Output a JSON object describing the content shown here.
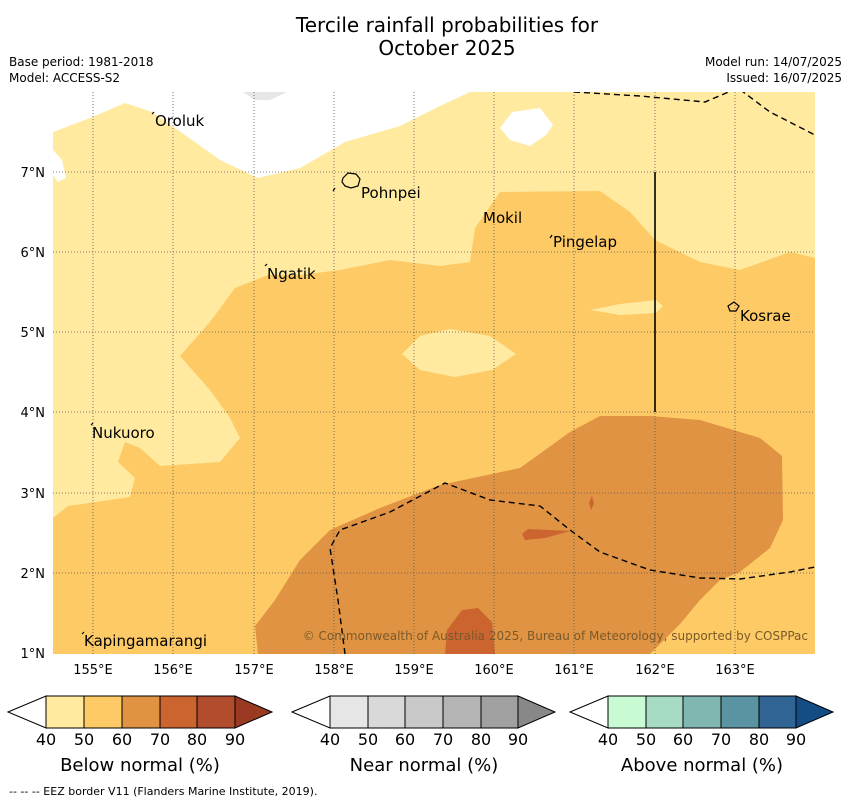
{
  "title": {
    "line1": "Tercile rainfall probabilities for",
    "line2": "October 2025"
  },
  "meta": {
    "base_period": "Base period: 1981-2018",
    "model": "Model: ACCESS-S2",
    "model_run": "Model run: 14/07/2025",
    "issued": "Issued: 16/07/2025"
  },
  "map": {
    "lon_ticks": [
      "155°E",
      "156°E",
      "157°E",
      "158°E",
      "159°E",
      "160°E",
      "161°E",
      "162°E",
      "163°E"
    ],
    "lat_ticks": [
      "1°N",
      "2°N",
      "3°N",
      "4°N",
      "5°N",
      "6°N",
      "7°N"
    ],
    "places": [
      "Oroluk",
      "Pohnpei",
      "Mokil",
      "Pingelap",
      "Ngatik",
      "Kosrae",
      "Nukuoro",
      "Kapingamarangi"
    ],
    "copyright": "© Commonwealth of Australia 2025, Bureau of Meteorology, supported by COSPPac"
  },
  "legend": {
    "ticks": [
      "40",
      "50",
      "60",
      "70",
      "80",
      "90"
    ],
    "below": {
      "label": "Below normal (%)",
      "colors": [
        "#ffffff",
        "#ffeaa0",
        "#fdca65",
        "#e09342",
        "#cc6430",
        "#b14d2c",
        "#9a3a22"
      ]
    },
    "near": {
      "label": "Near normal (%)",
      "colors": [
        "#ffffff",
        "#e6e6e6",
        "#d9d9d9",
        "#c8c8c8",
        "#b4b4b4",
        "#a0a0a0",
        "#888888"
      ]
    },
    "above": {
      "label": "Above normal (%)",
      "colors": [
        "#ffffff",
        "#c8fbd3",
        "#a4dbc2",
        "#80b8b1",
        "#5a93a2",
        "#2f6495",
        "#144c86"
      ]
    }
  },
  "footer": "--  --  -- EEZ border V11 (Flanders Marine Institute, 2019)."
}
